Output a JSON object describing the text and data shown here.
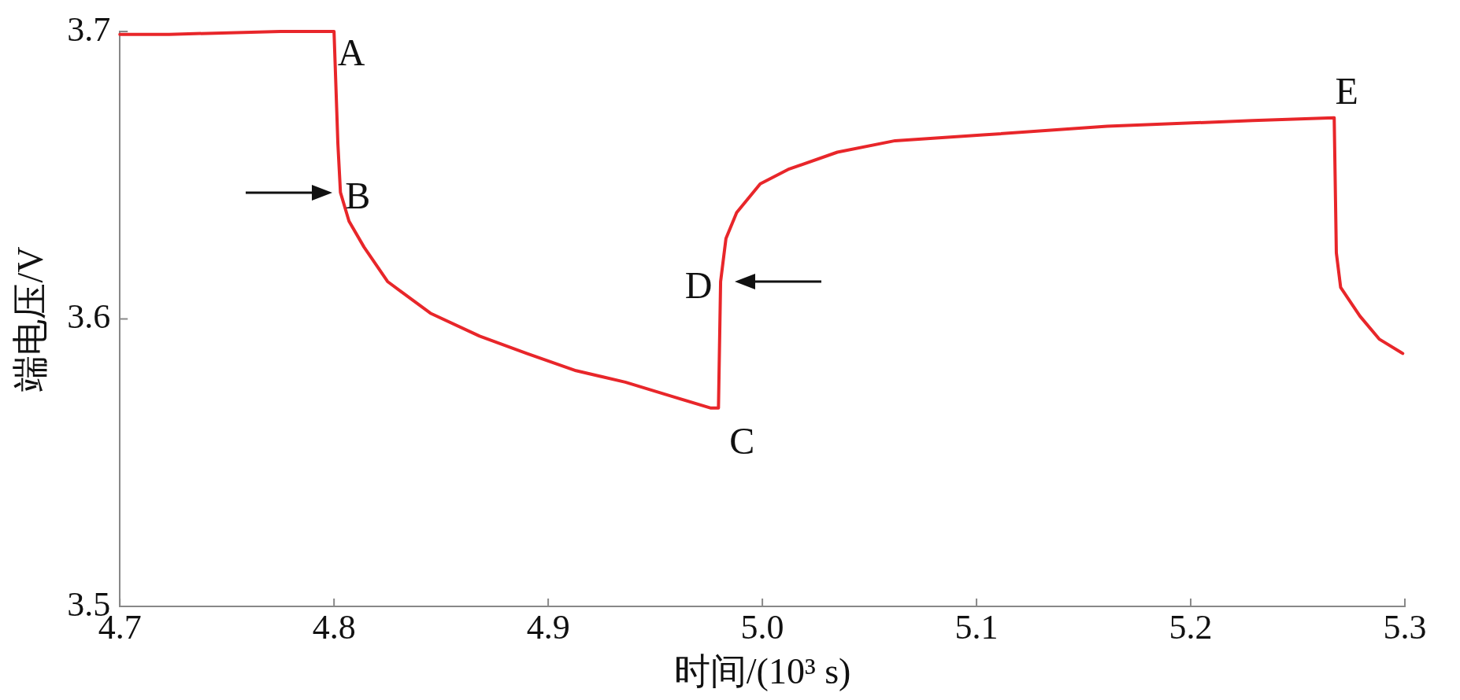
{
  "chart_data": {
    "type": "line",
    "xlabel": "时间/(10³ s)",
    "ylabel": "端电压/V",
    "xlim": [
      4.7,
      5.3
    ],
    "xticks": [
      4.7,
      4.8,
      4.9,
      {
        "value": 5.0,
        "label": "5.0"
      },
      5.1,
      5.2,
      5.3
    ],
    "ylim": [
      3.5,
      3.7
    ],
    "yticks": [
      3.5,
      3.6,
      3.7
    ],
    "grid": false,
    "legend": false,
    "marker": "none",
    "line_style": "solid",
    "series": [
      {
        "color": "#e8262a",
        "x": [
          4.7,
          4.723,
          4.775,
          4.8,
          4.8018,
          4.803,
          4.807,
          4.814,
          4.825,
          4.845,
          4.868,
          4.89,
          4.913,
          4.936,
          4.958,
          4.976,
          4.9795,
          4.9805,
          4.983,
          4.988,
          4.999,
          5.012,
          5.035,
          5.062,
          5.103,
          5.161,
          5.229,
          5.267,
          5.268,
          5.27,
          5.279,
          5.288,
          5.299
        ],
        "values": [
          3.699,
          3.699,
          3.7,
          3.7,
          3.661,
          3.644,
          3.634,
          3.625,
          3.613,
          3.602,
          3.594,
          3.588,
          3.582,
          3.578,
          3.573,
          3.569,
          3.569,
          3.613,
          3.628,
          3.637,
          3.647,
          3.652,
          3.658,
          3.662,
          3.664,
          3.667,
          3.669,
          3.67,
          3.623,
          3.611,
          3.601,
          3.593,
          3.588
        ]
      }
    ],
    "annotations": [
      {
        "text": "A",
        "x": 4.8,
        "y": 3.7
      },
      {
        "text": "B",
        "x": 4.803,
        "y": 3.644
      },
      {
        "text": "C",
        "x": 4.9795,
        "y": 3.569
      },
      {
        "text": "D",
        "x": 4.9805,
        "y": 3.613
      },
      {
        "text": "E",
        "x": 5.267,
        "y": 3.67
      }
    ]
  }
}
